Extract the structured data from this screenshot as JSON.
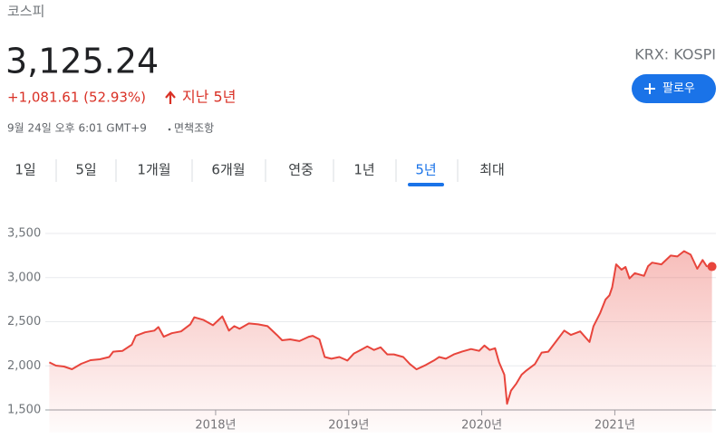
{
  "header": {
    "name": "코스피",
    "price": "3,125.24",
    "change": "+1,081.61 (52.93%)",
    "period": "지난 5년",
    "exchange": "KRX: KOSPI",
    "follow": "팔로우",
    "timestamp": "9월 24일 오후 6:01 GMT+9",
    "disclaimer": "면책조항"
  },
  "tabs": {
    "items": [
      "1일",
      "5일",
      "1개월",
      "6개월",
      "연중",
      "1년",
      "5년",
      "최대"
    ],
    "selected": 6
  },
  "chart_data": {
    "type": "line",
    "color": "#e8453c",
    "grid": true,
    "x": [
      2016.75,
      2016.8,
      2016.86,
      2016.92,
      2016.99,
      2017.06,
      2017.13,
      2017.2,
      2017.23,
      2017.3,
      2017.37,
      2017.4,
      2017.47,
      2017.54,
      2017.57,
      2017.61,
      2017.67,
      2017.74,
      2017.81,
      2017.84,
      2017.91,
      2017.98,
      2018.05,
      2018.1,
      2018.14,
      2018.18,
      2018.25,
      2018.32,
      2018.39,
      2018.46,
      2018.5,
      2018.56,
      2018.63,
      2018.7,
      2018.73,
      2018.78,
      2018.82,
      2018.87,
      2018.93,
      2018.99,
      2019.04,
      2019.09,
      2019.14,
      2019.19,
      2019.24,
      2019.29,
      2019.34,
      2019.41,
      2019.46,
      2019.51,
      2019.58,
      2019.64,
      2019.68,
      2019.73,
      2019.79,
      2019.85,
      2019.92,
      2019.98,
      2020.02,
      2020.06,
      2020.1,
      2020.13,
      2020.17,
      2020.19,
      2020.22,
      2020.26,
      2020.3,
      2020.33,
      2020.4,
      2020.45,
      2020.5,
      2020.57,
      2020.62,
      2020.67,
      2020.74,
      2020.81,
      2020.84,
      2020.89,
      2020.93,
      2020.96,
      2020.98,
      2021.01,
      2021.05,
      2021.08,
      2021.11,
      2021.15,
      2021.22,
      2021.25,
      2021.28,
      2021.35,
      2021.42,
      2021.47,
      2021.52,
      2021.57,
      2021.62,
      2021.66,
      2021.69,
      2021.73
    ],
    "values": [
      2040,
      2003,
      1992,
      1962,
      2023,
      2064,
      2074,
      2100,
      2160,
      2170,
      2240,
      2340,
      2380,
      2400,
      2440,
      2330,
      2370,
      2390,
      2470,
      2550,
      2520,
      2460,
      2560,
      2400,
      2450,
      2420,
      2480,
      2470,
      2450,
      2350,
      2290,
      2300,
      2280,
      2330,
      2340,
      2300,
      2100,
      2080,
      2100,
      2060,
      2140,
      2180,
      2220,
      2180,
      2210,
      2130,
      2130,
      2100,
      2020,
      1960,
      2010,
      2060,
      2100,
      2080,
      2130,
      2160,
      2190,
      2170,
      2230,
      2180,
      2200,
      2040,
      1900,
      1570,
      1720,
      1800,
      1900,
      1940,
      2020,
      2150,
      2160,
      2300,
      2400,
      2350,
      2390,
      2270,
      2450,
      2600,
      2750,
      2800,
      2890,
      3150,
      3090,
      3120,
      2990,
      3050,
      3020,
      3130,
      3170,
      3150,
      3250,
      3240,
      3300,
      3260,
      3100,
      3200,
      3130,
      3125.24
    ],
    "xlim": [
      2016.72,
      2021.76
    ],
    "xticks": [
      {
        "value": 2018,
        "label": "2018년"
      },
      {
        "value": 2019,
        "label": "2019년"
      },
      {
        "value": 2020,
        "label": "2020년"
      },
      {
        "value": 2021,
        "label": "2021년"
      }
    ],
    "ylim": [
      1500,
      3500
    ],
    "yticks": [
      {
        "value": 1500,
        "label": "1,500"
      },
      {
        "value": 2000,
        "label": "2,000"
      },
      {
        "value": 2500,
        "label": "2,500"
      },
      {
        "value": 3000,
        "label": "3,000"
      },
      {
        "value": 3500,
        "label": "3,500"
      }
    ]
  }
}
